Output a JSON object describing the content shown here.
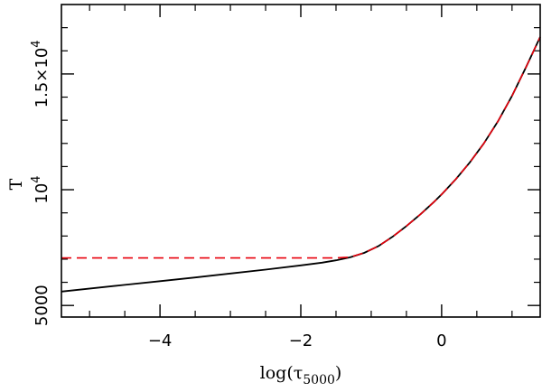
{
  "chart_data": {
    "type": "line",
    "xlabel": "log(τ",
    "xlabel_sub": "5000",
    "xlabel_close": ")",
    "ylabel": "T",
    "xlim": [
      -5.4,
      1.4
    ],
    "ylim": [
      4500,
      18000
    ],
    "xticks": [
      {
        "value": -4,
        "label": "−4"
      },
      {
        "value": -2,
        "label": "−2"
      },
      {
        "value": 0,
        "label": "0"
      }
    ],
    "xminor": [
      -5,
      -4.5,
      -3.5,
      -3,
      -2.5,
      -1.5,
      -1,
      -0.5,
      0.5,
      1
    ],
    "yticks": [
      {
        "value": 5000,
        "label": "5000",
        "exp": ""
      },
      {
        "value": 10000,
        "label": "10",
        "exp": "4"
      },
      {
        "value": 15000,
        "label": "1.5×10",
        "exp": "4"
      }
    ],
    "yminor": [
      6000,
      7000,
      8000,
      9000,
      11000,
      12000,
      13000,
      14000,
      16000,
      17000
    ],
    "series": [
      {
        "color": "#000000",
        "dash": "solid",
        "x": [
          -5.4,
          -4.5,
          -4.0,
          -3.5,
          -3.0,
          -2.5,
          -2.0,
          -1.7,
          -1.5,
          -1.3,
          -1.1,
          -0.9,
          -0.7,
          -0.5,
          -0.3,
          -0.1,
          0.0,
          0.2,
          0.4,
          0.6,
          0.8,
          1.0,
          1.2,
          1.4
        ],
        "y": [
          5600,
          5890,
          6050,
          6210,
          6380,
          6550,
          6730,
          6850,
          6950,
          7080,
          7270,
          7560,
          7960,
          8430,
          8940,
          9500,
          9800,
          10450,
          11180,
          12000,
          12950,
          14050,
          15300,
          16600
        ]
      },
      {
        "color": "#e8000b",
        "dash": "dashed",
        "x": [
          -5.4,
          -4.0,
          -3.0,
          -2.0,
          -1.5,
          -1.3,
          -1.1,
          -0.9,
          -0.7,
          -0.5,
          -0.3,
          -0.1,
          0.0,
          0.2,
          0.4,
          0.6,
          0.8,
          1.0,
          1.2,
          1.4
        ],
        "y": [
          7050,
          7050,
          7050,
          7050,
          7050,
          7090,
          7270,
          7560,
          7960,
          8430,
          8940,
          9500,
          9800,
          10450,
          11180,
          12000,
          12950,
          14050,
          15300,
          16600
        ]
      }
    ]
  }
}
